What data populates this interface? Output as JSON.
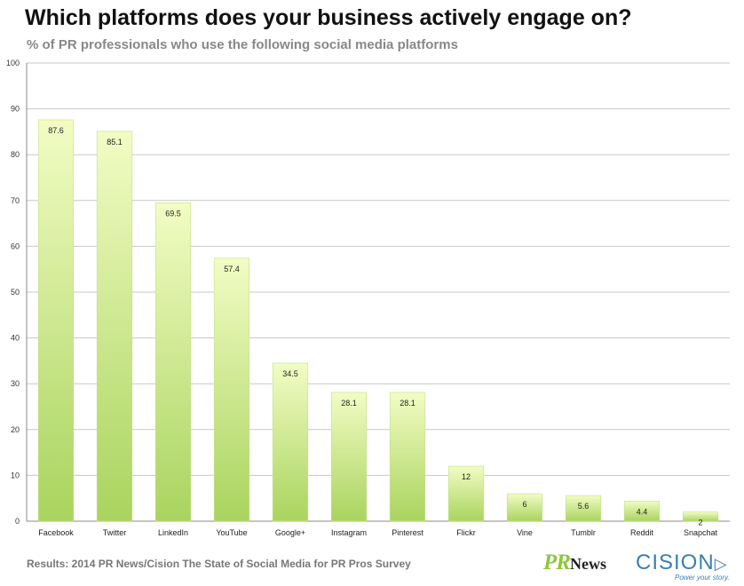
{
  "title": "Which platforms does your business actively engage on?",
  "subtitle": "% of PR professionals who use the following social media platforms",
  "footer": "Results: 2014 PR News/Cision The State of Social Media for PR Pros Survey",
  "logos": {
    "prnews_pr": "PR",
    "prnews_news": "News",
    "cision": "CISION",
    "cision_tagline": "Power your story."
  },
  "colors": {
    "bar_top": "#f2fcc4",
    "bar_bottom": "#a9d45e",
    "grid": "#c8c8c8",
    "axis": "#888888"
  },
  "chart_data": {
    "type": "bar",
    "categories": [
      "Facebook",
      "Twitter",
      "LinkedIn",
      "YouTube",
      "Google+",
      "Instagram",
      "Pinterest",
      "Flickr",
      "Vine",
      "Tumblr",
      "Reddit",
      "Snapchat"
    ],
    "values": [
      87.6,
      85.1,
      69.5,
      57.4,
      34.5,
      28.1,
      28.1,
      12,
      6,
      5.6,
      4.4,
      2
    ],
    "data_labels": [
      "87.6",
      "85.1",
      "69.5",
      "57.4",
      "34.5",
      "28.1",
      "28.1",
      "12",
      "6",
      "5.6",
      "4.4",
      "2"
    ],
    "yticks": [
      "0",
      "10",
      "20",
      "30",
      "40",
      "50",
      "60",
      "70",
      "80",
      "90",
      "100"
    ],
    "ylim": [
      0,
      100
    ],
    "grid": true,
    "legend": "none"
  }
}
